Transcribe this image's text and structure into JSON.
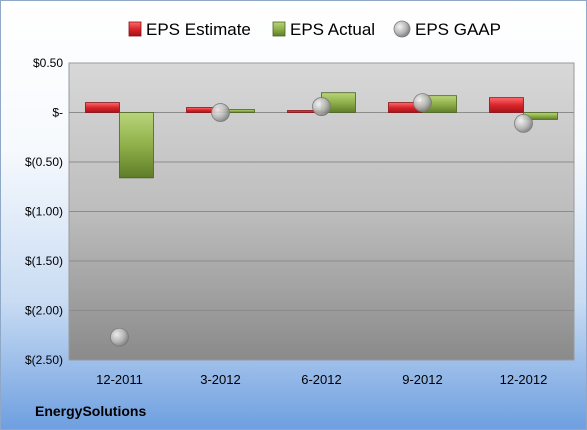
{
  "company": "EnergySolutions",
  "chart_data": {
    "type": "bar",
    "categories": [
      "12-2011",
      "3-2012",
      "6-2012",
      "9-2012",
      "12-2012"
    ],
    "series": [
      {
        "name": "EPS Estimate",
        "kind": "bar",
        "color": "#d9262c",
        "values": [
          0.1,
          0.05,
          0.02,
          0.1,
          0.15
        ]
      },
      {
        "name": "EPS Actual",
        "kind": "bar",
        "color": "#8fb04a",
        "values": [
          -0.66,
          0.03,
          0.2,
          0.17,
          -0.07
        ]
      },
      {
        "name": "EPS GAAP",
        "kind": "point",
        "color": "#b4b4b4",
        "values": [
          -2.27,
          0.0,
          0.06,
          0.1,
          -0.11
        ]
      }
    ],
    "yticks": [
      "$0.50",
      "$-",
      "$(0.50)",
      "$(1.00)",
      "$(1.50)",
      "$(2.00)",
      "$(2.50)"
    ],
    "ytick_values": [
      0.5,
      0,
      -0.5,
      -1.0,
      -1.5,
      -2.0,
      -2.5
    ],
    "ylim": [
      -2.5,
      0.5
    ],
    "grid": true,
    "legend_position": "top"
  }
}
